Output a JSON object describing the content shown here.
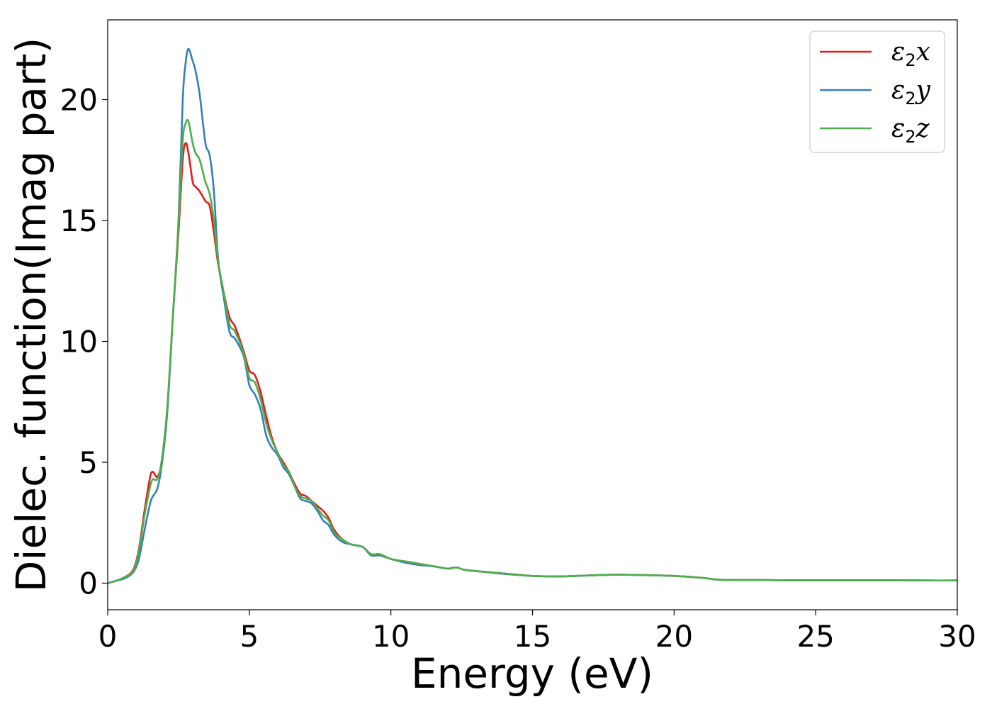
{
  "chart_data": {
    "type": "line",
    "xlabel": "Energy (eV)",
    "ylabel": "Dielec. function(Imag part)",
    "xlim": [
      0,
      30
    ],
    "ylim": [
      -1.1,
      23.3
    ],
    "xticks": [
      0,
      5,
      10,
      15,
      20,
      25,
      30
    ],
    "yticks": [
      0,
      5,
      10,
      15,
      20
    ],
    "grid": false,
    "legend_position": "top-right",
    "series": [
      {
        "name": "ε₂x",
        "base": "ε",
        "sub": "2",
        "var": "x",
        "color": "#e41a1c",
        "x": [
          0,
          0.3,
          0.6,
          0.9,
          1.1,
          1.3,
          1.5,
          1.6,
          1.75,
          1.9,
          2.1,
          2.3,
          2.5,
          2.65,
          2.75,
          2.85,
          3.0,
          3.1,
          3.25,
          3.45,
          3.6,
          3.75,
          3.9,
          4.1,
          4.3,
          4.5,
          4.8,
          5.0,
          5.2,
          5.4,
          5.6,
          5.8,
          6.0,
          6.2,
          6.4,
          6.6,
          6.8,
          7.0,
          7.2,
          7.4,
          7.6,
          7.8,
          8.0,
          8.3,
          8.6,
          9.0,
          9.3,
          9.6,
          10.0,
          10.5,
          11.0,
          11.5,
          12.0,
          12.3,
          12.6,
          13.0,
          14.0,
          15.0,
          16.0,
          17.0,
          18.0,
          19.0,
          20.0,
          21.0,
          21.5,
          22.0,
          23.0,
          24.0,
          25.0,
          26.0,
          27.0,
          28.0,
          29.0,
          30.0
        ],
        "values": [
          0,
          0.1,
          0.25,
          0.55,
          1.4,
          3.0,
          4.4,
          4.6,
          4.4,
          5.0,
          7.2,
          11.0,
          14.5,
          17.5,
          18.2,
          17.8,
          16.6,
          16.4,
          16.2,
          15.8,
          15.6,
          14.5,
          13.2,
          12.0,
          11.0,
          10.6,
          9.6,
          8.8,
          8.6,
          7.9,
          6.9,
          6.0,
          5.4,
          5.0,
          4.6,
          4.1,
          3.7,
          3.6,
          3.4,
          3.2,
          3.0,
          2.7,
          2.2,
          1.8,
          1.6,
          1.5,
          1.2,
          1.2,
          1.0,
          0.9,
          0.8,
          0.7,
          0.6,
          0.65,
          0.55,
          0.5,
          0.4,
          0.3,
          0.28,
          0.32,
          0.35,
          0.33,
          0.3,
          0.22,
          0.15,
          0.13,
          0.13,
          0.12,
          0.12,
          0.12,
          0.12,
          0.12,
          0.11,
          0.11
        ]
      },
      {
        "name": "ε₂y",
        "base": "ε",
        "sub": "2",
        "var": "y",
        "color": "#377eb8",
        "x": [
          0,
          0.3,
          0.6,
          0.9,
          1.1,
          1.3,
          1.5,
          1.6,
          1.75,
          1.9,
          2.1,
          2.3,
          2.5,
          2.65,
          2.75,
          2.85,
          3.0,
          3.1,
          3.25,
          3.45,
          3.6,
          3.75,
          3.9,
          4.1,
          4.3,
          4.5,
          4.8,
          5.0,
          5.2,
          5.4,
          5.6,
          5.8,
          6.0,
          6.2,
          6.4,
          6.6,
          6.8,
          7.0,
          7.2,
          7.4,
          7.6,
          7.8,
          8.0,
          8.3,
          8.6,
          9.0,
          9.3,
          9.6,
          10.0,
          10.5,
          11.0,
          11.5,
          12.0,
          12.3,
          12.6,
          13.0,
          14.0,
          15.0,
          16.0,
          17.0,
          18.0,
          19.0,
          20.0,
          21.0,
          21.5,
          22.0,
          23.0,
          24.0,
          25.0,
          26.0,
          27.0,
          28.0,
          29.0,
          30.0
        ],
        "values": [
          0,
          0.1,
          0.2,
          0.45,
          1.0,
          2.2,
          3.3,
          3.6,
          3.9,
          4.8,
          7.0,
          11.0,
          15.0,
          20.0,
          21.5,
          22.1,
          21.6,
          21.2,
          20.2,
          18.2,
          17.7,
          16.2,
          13.4,
          11.8,
          10.4,
          10.1,
          9.4,
          8.2,
          7.8,
          7.2,
          6.1,
          5.6,
          5.3,
          4.8,
          4.5,
          4.0,
          3.5,
          3.4,
          3.3,
          3.0,
          2.6,
          2.4,
          2.0,
          1.7,
          1.6,
          1.5,
          1.15,
          1.15,
          1.0,
          0.85,
          0.75,
          0.7,
          0.6,
          0.65,
          0.55,
          0.5,
          0.38,
          0.3,
          0.28,
          0.32,
          0.35,
          0.33,
          0.3,
          0.22,
          0.15,
          0.13,
          0.13,
          0.12,
          0.12,
          0.12,
          0.12,
          0.12,
          0.11,
          0.11
        ]
      },
      {
        "name": "ε₂z",
        "base": "ε",
        "sub": "2",
        "var": "z",
        "color": "#4daf4a",
        "x": [
          0,
          0.3,
          0.6,
          0.9,
          1.1,
          1.3,
          1.5,
          1.6,
          1.75,
          1.9,
          2.1,
          2.3,
          2.5,
          2.65,
          2.75,
          2.85,
          3.0,
          3.1,
          3.25,
          3.45,
          3.6,
          3.75,
          3.9,
          4.1,
          4.3,
          4.5,
          4.8,
          5.0,
          5.2,
          5.4,
          5.6,
          5.8,
          6.0,
          6.2,
          6.4,
          6.6,
          6.8,
          7.0,
          7.2,
          7.4,
          7.6,
          7.8,
          8.0,
          8.3,
          8.6,
          9.0,
          9.3,
          9.6,
          10.0,
          10.5,
          11.0,
          11.5,
          12.0,
          12.3,
          12.6,
          13.0,
          14.0,
          15.0,
          16.0,
          17.0,
          18.0,
          19.0,
          20.0,
          21.0,
          21.5,
          22.0,
          23.0,
          24.0,
          25.0,
          26.0,
          27.0,
          28.0,
          29.0,
          30.0
        ],
        "values": [
          0,
          0.1,
          0.25,
          0.5,
          1.3,
          2.8,
          4.0,
          4.3,
          4.3,
          5.0,
          7.2,
          11.0,
          14.8,
          18.3,
          19.0,
          19.1,
          18.2,
          17.8,
          17.5,
          16.6,
          16.1,
          15.0,
          13.3,
          12.0,
          10.7,
          10.4,
          9.5,
          8.5,
          8.3,
          7.6,
          6.6,
          5.9,
          5.4,
          4.9,
          4.6,
          4.0,
          3.6,
          3.5,
          3.4,
          3.1,
          2.8,
          2.6,
          2.1,
          1.8,
          1.6,
          1.5,
          1.2,
          1.2,
          1.0,
          0.9,
          0.8,
          0.7,
          0.6,
          0.65,
          0.55,
          0.5,
          0.4,
          0.3,
          0.28,
          0.32,
          0.35,
          0.33,
          0.3,
          0.22,
          0.15,
          0.13,
          0.13,
          0.12,
          0.12,
          0.12,
          0.12,
          0.12,
          0.11,
          0.11
        ]
      }
    ]
  }
}
